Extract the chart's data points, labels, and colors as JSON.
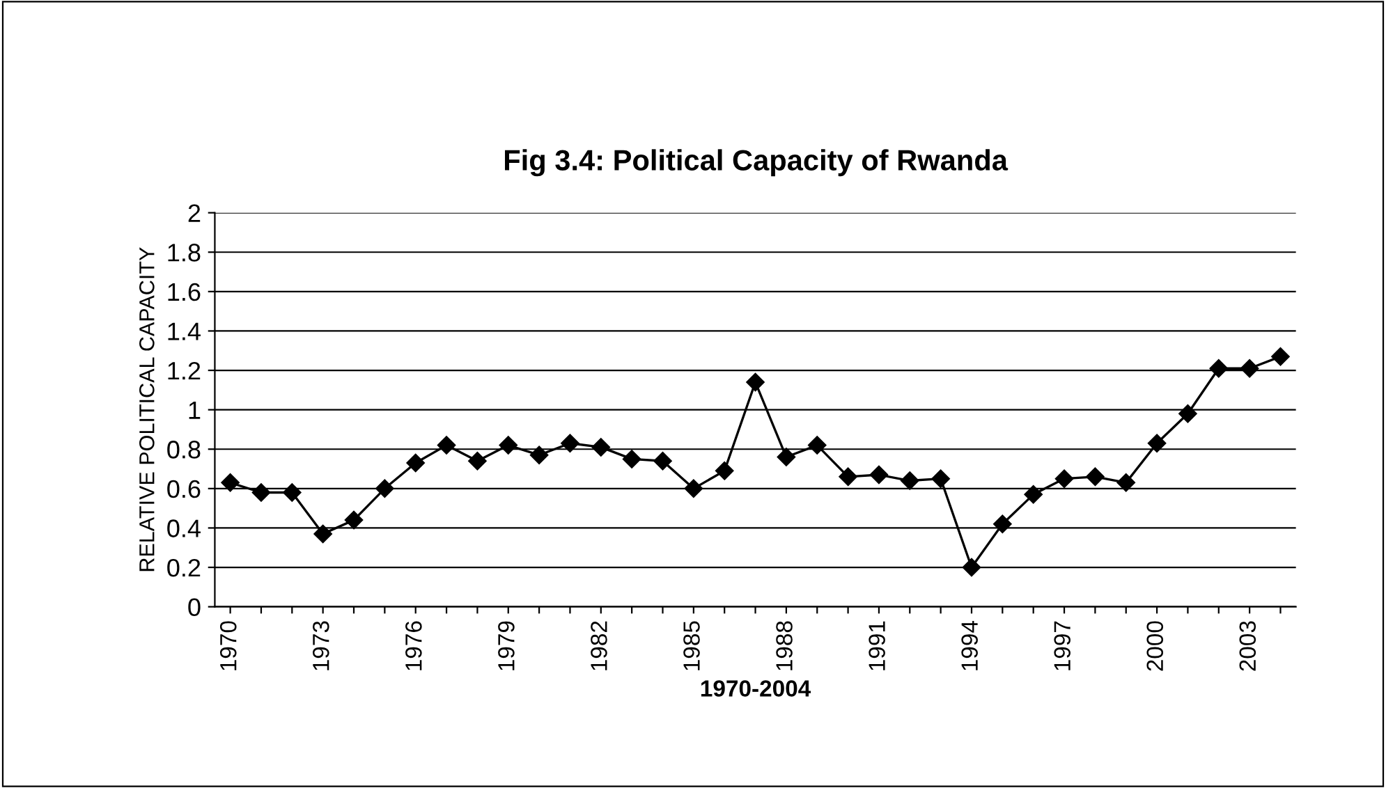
{
  "chart_data": {
    "type": "line",
    "title": "Fig 3.4: Political Capacity of Rwanda",
    "xlabel": "1970-2004",
    "ylabel": "RELATIVE POLITICAL CAPACITY",
    "categories": [
      "1970",
      null,
      null,
      "1973",
      null,
      null,
      "1976",
      null,
      null,
      "1979",
      null,
      null,
      "1982",
      null,
      null,
      "1985",
      null,
      null,
      "1988",
      null,
      null,
      "1991",
      null,
      null,
      "1994",
      null,
      null,
      "1997",
      null,
      null,
      "2000",
      null,
      null,
      "2003",
      null
    ],
    "series": [
      {
        "color": "#000000",
        "values": [
          0.63,
          0.58,
          0.58,
          0.37,
          0.44,
          0.6,
          0.73,
          0.82,
          0.74,
          0.82,
          0.77,
          0.83,
          0.81,
          0.75,
          0.74,
          0.6,
          0.69,
          1.14,
          0.76,
          0.82,
          0.66,
          0.67,
          0.64,
          0.65,
          0.2,
          0.42,
          0.57,
          0.65,
          0.66,
          0.63,
          0.83,
          0.98,
          1.21,
          1.21,
          1.27
        ]
      }
    ],
    "ylim": [
      0,
      2
    ],
    "yticks": [
      0,
      0.2,
      0.4,
      0.6,
      0.8,
      1,
      1.2,
      1.4,
      1.6,
      1.8,
      2
    ],
    "grid": "y",
    "marker": "diamond",
    "line_style": "solid",
    "legend": false
  }
}
